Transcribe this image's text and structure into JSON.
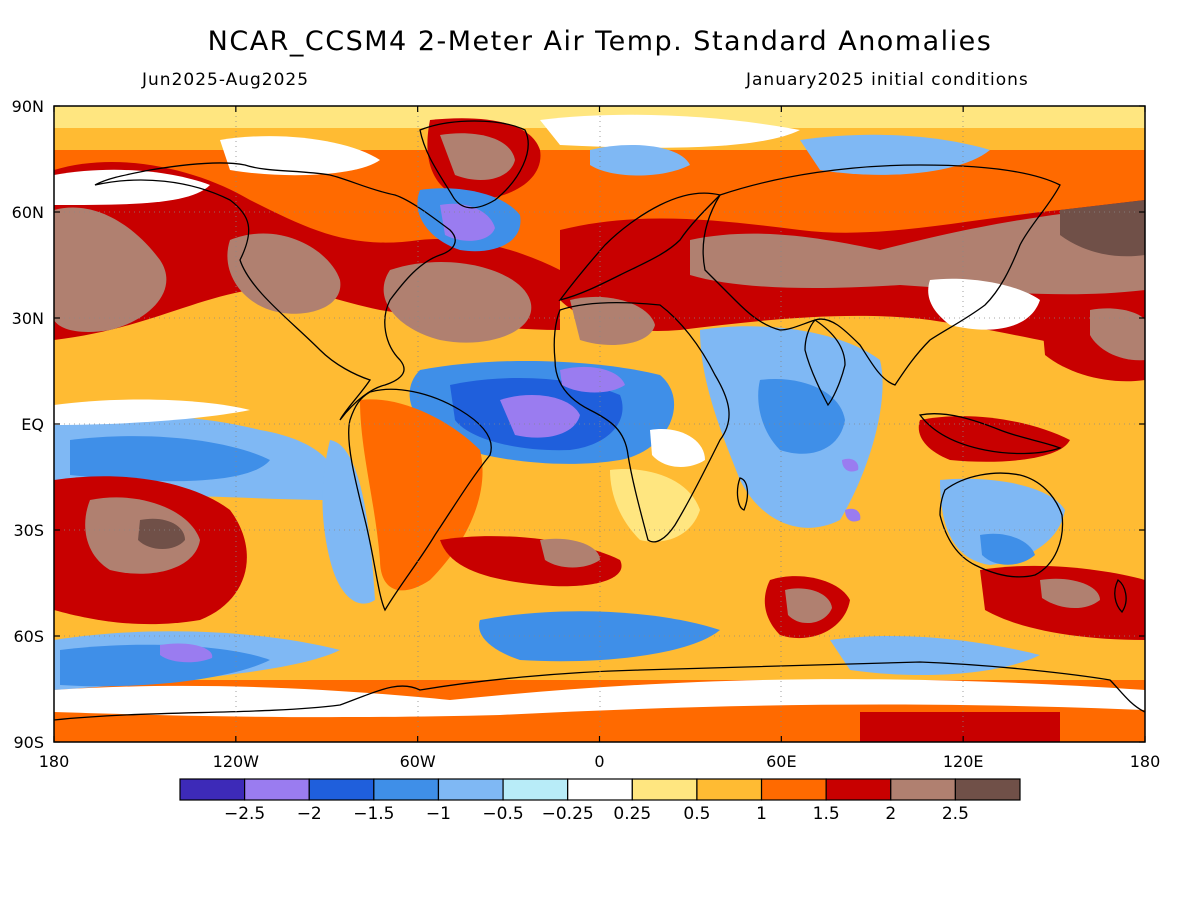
{
  "header": {
    "title": "NCAR_CCSM4 2-Meter Air Temp. Standard Anomalies",
    "period": "Jun2025-Aug2025",
    "initial_conditions": "January2025 initial conditions"
  },
  "axes": {
    "lat_labels": [
      "90N",
      "60N",
      "30N",
      "EQ",
      "30S",
      "60S",
      "90S"
    ],
    "lon_labels": [
      "180",
      "120W",
      "60W",
      "0",
      "60E",
      "120E",
      "180"
    ]
  },
  "colorbar": {
    "colors": [
      "#3d2ab8",
      "#9a7cf0",
      "#1f5fdc",
      "#3f8fe8",
      "#7fb8f4",
      "#b8ecf8",
      "#ffffff",
      "#ffe680",
      "#ffbb33",
      "#ff6a00",
      "#c80000",
      "#b08070",
      "#705048"
    ],
    "labels": [
      "-2.5",
      "-2",
      "-1.5",
      "-1",
      "-0.5",
      "-0.25",
      "0.25",
      "0.5",
      "1",
      "1.5",
      "2",
      "2.5"
    ]
  },
  "map_colors": {
    "ocean_background": "#ffbb33",
    "coastline": "#000000",
    "frame": "#000000"
  }
}
